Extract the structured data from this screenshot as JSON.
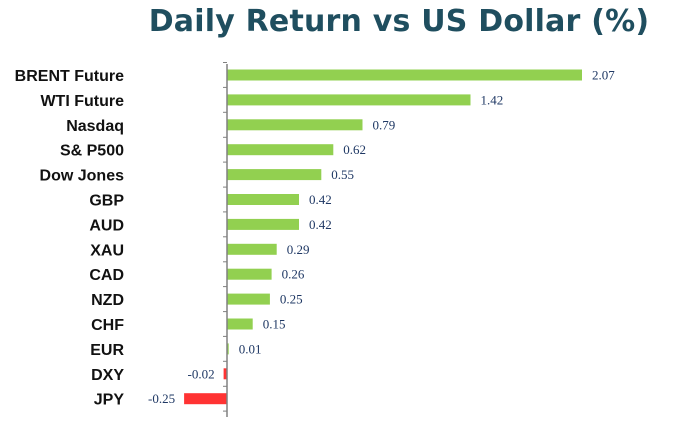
{
  "chart_data": {
    "type": "bar",
    "orientation": "horizontal",
    "title": "Daily Return vs US Dollar (%)",
    "categories": [
      "BRENT Future",
      "WTI Future",
      "Nasdaq",
      "S& P500",
      "Dow Jones",
      "GBP",
      "AUD",
      "XAU",
      "CAD",
      "NZD",
      "CHF",
      "EUR",
      "DXY",
      "JPY"
    ],
    "values": [
      2.07,
      1.42,
      0.79,
      0.62,
      0.55,
      0.42,
      0.42,
      0.29,
      0.26,
      0.25,
      0.15,
      0.01,
      -0.02,
      -0.25
    ],
    "value_labels": [
      "2.07",
      "1.42",
      "0.79",
      "0.62",
      "0.55",
      "0.42",
      "0.42",
      "0.29",
      "0.26",
      "0.25",
      "0.15",
      "0.01",
      "-0.02",
      "-0.25"
    ],
    "xlim": [
      -0.25,
      2.07
    ],
    "grid": false,
    "legend": "none",
    "colors": {
      "positive": "#92d050",
      "negative": "#ff3333",
      "axis": "#808080",
      "title": "#1f4e5f",
      "value_label": "#1f3864",
      "category_label": "#111111"
    }
  }
}
